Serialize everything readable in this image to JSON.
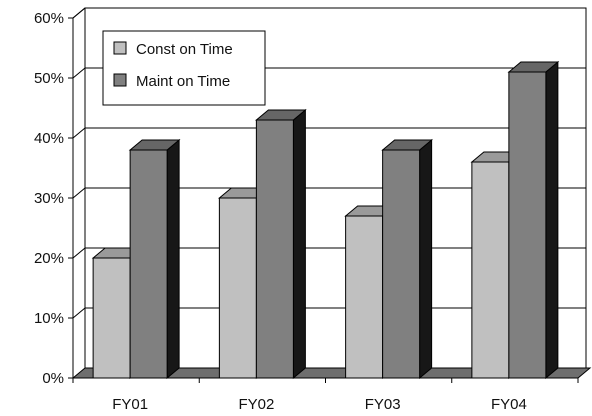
{
  "chart_data": {
    "type": "bar",
    "categories": [
      "FY01",
      "FY02",
      "FY03",
      "FY04"
    ],
    "series": [
      {
        "name": "Const on Time",
        "values": [
          20,
          30,
          27,
          36
        ],
        "color": "#c0c0c0"
      },
      {
        "name": "Maint on Time",
        "values": [
          38,
          43,
          38,
          51
        ],
        "color": "#808080"
      }
    ],
    "y_ticks": [
      "0%",
      "10%",
      "20%",
      "30%",
      "40%",
      "50%",
      "60%"
    ],
    "ylim": [
      0,
      60
    ],
    "grid": true,
    "legend_position": "top-left",
    "style": "3d-clustered-column"
  }
}
